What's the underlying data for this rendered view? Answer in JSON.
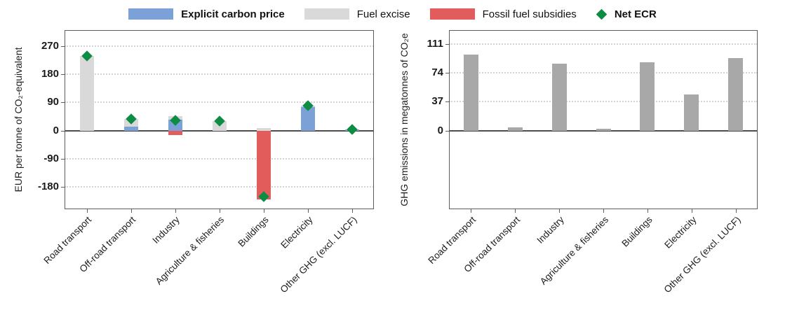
{
  "legend": {
    "items": [
      {
        "label": "Explicit carbon price",
        "color": "#7ba1d7",
        "shape": "rect",
        "bold": true
      },
      {
        "label": "Fuel excise",
        "color": "#d9d9d9",
        "shape": "rect",
        "bold": false
      },
      {
        "label": "Fossil fuel subsidies",
        "color": "#e25c5c",
        "shape": "rect",
        "bold": false
      },
      {
        "label": "Net ECR",
        "color": "#0d8c44",
        "shape": "diamond",
        "bold": true
      }
    ]
  },
  "chart_data": [
    {
      "type": "bar",
      "subtype": "stacked-with-net-marker",
      "title": "",
      "ylabel": "EUR per tonne of CO₂-equivalent",
      "xlabel": "",
      "categories": [
        "Road transport",
        "Off-road transport",
        "Industry",
        "Agriculture & fisheries",
        "Buildings",
        "Electricity",
        "Other GHG (excl. LUCF)"
      ],
      "series": [
        {
          "name": "Explicit carbon price",
          "color": "#7ba1d7",
          "values": [
            0,
            12,
            36,
            0,
            0,
            76,
            3
          ]
        },
        {
          "name": "Fuel excise",
          "color": "#d9d9d9",
          "values": [
            240,
            25,
            10,
            30,
            8,
            4,
            0
          ]
        },
        {
          "name": "Fossil fuel subsidies",
          "color": "#e25c5c",
          "values": [
            0,
            0,
            -14,
            0,
            -220,
            0,
            0
          ]
        }
      ],
      "marker": {
        "name": "Net ECR",
        "color": "#0d8c44",
        "values": [
          240,
          37,
          32,
          30,
          -212,
          80,
          3
        ]
      },
      "yticks": [
        270,
        180,
        90,
        0,
        -90,
        -180
      ],
      "ylim": [
        -252,
        322
      ],
      "grid": "horizontal-dotted",
      "legend_position": "top"
    },
    {
      "type": "bar",
      "subtype": "simple",
      "title": "",
      "ylabel": "GHG emissions in megatonnes of CO₂e",
      "xlabel": "",
      "categories": [
        "Road transport",
        "Off-road transport",
        "Industry",
        "Agriculture & fisheries",
        "Buildings",
        "Electricity",
        "Other GHG (excl. LUCF)"
      ],
      "series": [
        {
          "name": "GHG emissions",
          "color": "#a8a8a8",
          "values": [
            98,
            4,
            86,
            2,
            88,
            46,
            93
          ]
        }
      ],
      "yticks": [
        111,
        74,
        37,
        0
      ],
      "ylim": [
        -101,
        129
      ],
      "grid": "horizontal-dotted",
      "legend_position": "none"
    }
  ]
}
